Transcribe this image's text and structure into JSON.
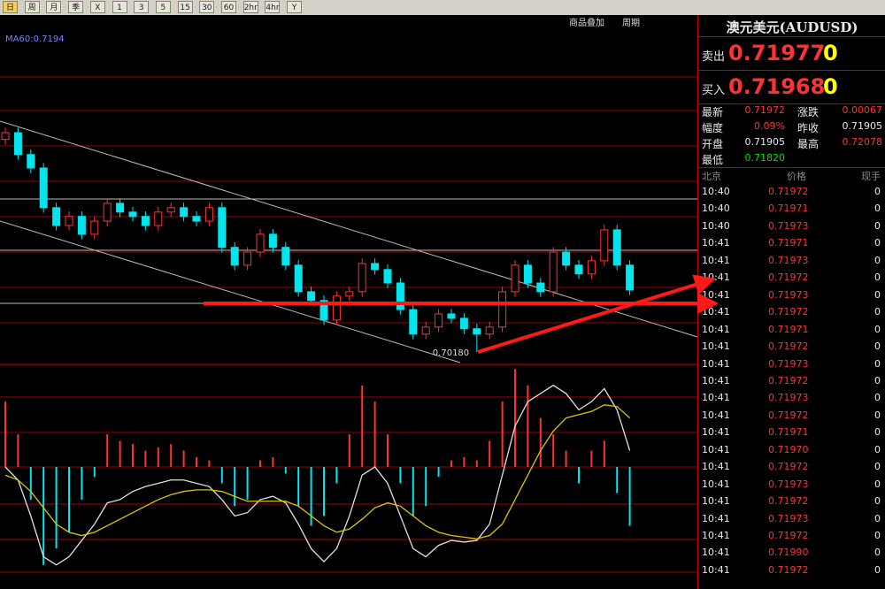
{
  "toolbar": {
    "buttons": [
      "日",
      "周",
      "月",
      "季",
      "X",
      "1",
      "3",
      "5",
      "15",
      "30",
      "60",
      "2hr",
      "4hr",
      "Y"
    ],
    "right": [
      "商品叠加",
      "周期"
    ]
  },
  "chart_data": {
    "type": "candlestick",
    "ma_label": "MA60:0.7194",
    "low_label": "0.70180",
    "ylim": [
      0.6981,
      0.8012
    ],
    "up_color": "#ff3232",
    "down_color": "#00e5ee",
    "open": [
      0.765,
      0.767,
      0.7605,
      0.7565,
      0.7447,
      0.7394,
      0.7421,
      0.7368,
      0.7407,
      0.746,
      0.7434,
      0.7421,
      0.7394,
      0.7434,
      0.7447,
      0.7421,
      0.7407,
      0.7447,
      0.7329,
      0.7276,
      0.7315,
      0.7368,
      0.7329,
      0.7276,
      0.7197,
      0.7171,
      0.7113,
      0.7184,
      0.7197,
      0.7281,
      0.7263,
      0.7223,
      0.7144,
      0.7071,
      0.7092,
      0.7131,
      0.7118,
      0.7087,
      0.7071,
      0.7092,
      0.7197,
      0.7276,
      0.7223,
      0.7197,
      0.7315,
      0.7276,
      0.725,
      0.7289,
      0.7381,
      0.7276
    ],
    "high": [
      0.7685,
      0.7685,
      0.762,
      0.758,
      0.7462,
      0.7436,
      0.7436,
      0.7422,
      0.7475,
      0.7475,
      0.7449,
      0.7436,
      0.7449,
      0.7462,
      0.7462,
      0.7436,
      0.7462,
      0.7462,
      0.7344,
      0.733,
      0.7383,
      0.7383,
      0.7344,
      0.7291,
      0.7212,
      0.7186,
      0.7199,
      0.7212,
      0.7296,
      0.7296,
      0.7278,
      0.7238,
      0.7159,
      0.7107,
      0.7146,
      0.7146,
      0.7133,
      0.7102,
      0.7107,
      0.7212,
      0.7291,
      0.7291,
      0.7238,
      0.733,
      0.733,
      0.7291,
      0.7304,
      0.7396,
      0.7396,
      0.7291
    ],
    "low": [
      0.7635,
      0.759,
      0.755,
      0.7432,
      0.7379,
      0.7379,
      0.7353,
      0.7353,
      0.7392,
      0.7419,
      0.7406,
      0.7379,
      0.7379,
      0.7419,
      0.7406,
      0.7392,
      0.7392,
      0.7314,
      0.7261,
      0.7261,
      0.73,
      0.7314,
      0.7261,
      0.7182,
      0.7156,
      0.7098,
      0.7098,
      0.7169,
      0.7182,
      0.7248,
      0.7208,
      0.7129,
      0.7056,
      0.7056,
      0.7077,
      0.7103,
      0.7072,
      0.7018,
      0.7056,
      0.7077,
      0.7182,
      0.7208,
      0.7182,
      0.7182,
      0.7261,
      0.7235,
      0.7235,
      0.7274,
      0.7261,
      0.7187
    ],
    "close": [
      0.767,
      0.7605,
      0.7565,
      0.7447,
      0.7394,
      0.7421,
      0.7368,
      0.7407,
      0.746,
      0.7434,
      0.7421,
      0.7394,
      0.7434,
      0.7447,
      0.7421,
      0.7407,
      0.7447,
      0.7329,
      0.7276,
      0.7315,
      0.7368,
      0.7329,
      0.7276,
      0.7197,
      0.7171,
      0.7113,
      0.7184,
      0.7197,
      0.7281,
      0.7263,
      0.7223,
      0.7144,
      0.7071,
      0.7092,
      0.7131,
      0.7118,
      0.7087,
      0.7071,
      0.7092,
      0.7197,
      0.7276,
      0.7223,
      0.7197,
      0.7315,
      0.7276,
      0.725,
      0.7289,
      0.7381,
      0.7276,
      0.7202
    ],
    "macd": {
      "ylim": [
        -0.0065,
        0.0065
      ],
      "hist": [
        0.004,
        0.002,
        -0.002,
        -0.006,
        -0.005,
        -0.004,
        -0.002,
        -0.0006,
        0.002,
        0.0016,
        0.0014,
        0.001,
        0.0012,
        0.0014,
        0.001,
        0.0006,
        0.0004,
        -0.001,
        -0.0024,
        -0.002,
        0.0004,
        0.0006,
        -0.0004,
        -0.0024,
        -0.0036,
        -0.003,
        -0.001,
        0.002,
        0.005,
        0.004,
        0.002,
        -0.001,
        -0.003,
        -0.0024,
        -0.0006,
        0.0004,
        0.0006,
        0.0004,
        0.0016,
        0.004,
        0.006,
        0.005,
        0.003,
        0.002,
        0.001,
        -0.001,
        0.001,
        0.0016,
        -0.0016,
        -0.0036
      ],
      "dif": [
        0.0,
        -0.0008,
        -0.003,
        -0.0055,
        -0.006,
        -0.0055,
        -0.0045,
        -0.0035,
        -0.0022,
        -0.002,
        -0.0015,
        -0.0012,
        -0.001,
        -0.0008,
        -0.0008,
        -0.001,
        -0.0012,
        -0.002,
        -0.003,
        -0.0028,
        -0.002,
        -0.0018,
        -0.0022,
        -0.0035,
        -0.005,
        -0.0058,
        -0.005,
        -0.003,
        -0.0005,
        0.0,
        -0.001,
        -0.003,
        -0.005,
        -0.0055,
        -0.0048,
        -0.0045,
        -0.0046,
        -0.0045,
        -0.0035,
        -0.0005,
        0.0025,
        0.004,
        0.0045,
        0.005,
        0.0045,
        0.0035,
        0.004,
        0.0048,
        0.0035,
        0.001
      ],
      "dea": [
        -0.0005,
        -0.0008,
        -0.0015,
        -0.0025,
        -0.0035,
        -0.004,
        -0.0042,
        -0.004,
        -0.0036,
        -0.0032,
        -0.0028,
        -0.0024,
        -0.002,
        -0.0017,
        -0.0015,
        -0.0014,
        -0.0014,
        -0.0015,
        -0.0018,
        -0.0021,
        -0.0021,
        -0.0021,
        -0.0021,
        -0.0024,
        -0.003,
        -0.0036,
        -0.004,
        -0.0038,
        -0.0032,
        -0.0025,
        -0.0022,
        -0.0024,
        -0.003,
        -0.0036,
        -0.004,
        -0.0042,
        -0.0043,
        -0.0044,
        -0.0042,
        -0.0035,
        -0.002,
        -0.0005,
        0.001,
        0.0022,
        0.003,
        0.0032,
        0.0034,
        0.0038,
        0.0037,
        0.003
      ]
    }
  },
  "quote": {
    "title": "澳元美元(AUDUSD)",
    "sell": {
      "label": "卖出",
      "price": "0.71977",
      "tail": "0"
    },
    "buy": {
      "label": "买入",
      "price": "0.71968",
      "tail": "0"
    },
    "stats": [
      [
        "最新",
        "0.71972",
        "涨跌",
        "0.00067"
      ],
      [
        "幅度",
        "0.09%",
        "昨收",
        "0.71905"
      ],
      [
        "开盘",
        "0.71905",
        "最高",
        "0.72078"
      ],
      [
        "最低",
        "0.71820"
      ]
    ],
    "headers": [
      "北京",
      "价格",
      "现手"
    ],
    "trades": [
      [
        "10:40",
        "0.71972",
        "0"
      ],
      [
        "10:40",
        "0.71971",
        "0"
      ],
      [
        "10:40",
        "0.71973",
        "0"
      ],
      [
        "10:41",
        "0.71971",
        "0"
      ],
      [
        "10:41",
        "0.71973",
        "0"
      ],
      [
        "10:41",
        "0.71972",
        "0"
      ],
      [
        "10:41",
        "0.71973",
        "0"
      ],
      [
        "10:41",
        "0.71972",
        "0"
      ],
      [
        "10:41",
        "0.71971",
        "0"
      ],
      [
        "10:41",
        "0.71972",
        "0"
      ],
      [
        "10:41",
        "0.71973",
        "0"
      ],
      [
        "10:41",
        "0.71972",
        "0"
      ],
      [
        "10:41",
        "0.71973",
        "0"
      ],
      [
        "10:41",
        "0.71972",
        "0"
      ],
      [
        "10:41",
        "0.71971",
        "0"
      ],
      [
        "10:41",
        "0.71970",
        "0"
      ],
      [
        "10:41",
        "0.71972",
        "0"
      ],
      [
        "10:41",
        "0.71973",
        "0"
      ],
      [
        "10:41",
        "0.71972",
        "0"
      ],
      [
        "10:41",
        "0.71973",
        "0"
      ],
      [
        "10:41",
        "0.71972",
        "0"
      ],
      [
        "10:41",
        "0.71990",
        "0"
      ],
      [
        "10:41",
        "0.71972",
        "0"
      ]
    ]
  }
}
